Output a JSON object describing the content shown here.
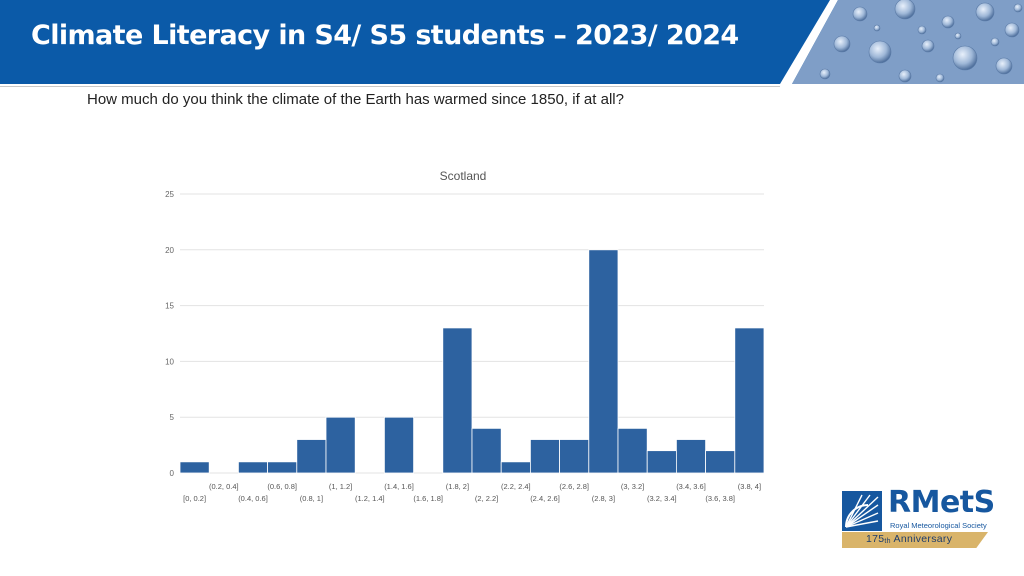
{
  "slide": {
    "title": "Climate Literacy in S4/ S5 students – 2023/ 2024",
    "question": "How much do you think the climate of the Earth has warmed since 1850, if at all?"
  },
  "logo": {
    "name": "RMetS",
    "society": "Royal Meteorological Society",
    "anniversary_number": "175",
    "anniversary_suffix": "th",
    "anniversary_word": "Anniversary",
    "colors": {
      "primary": "#16579f",
      "band": "#d9b46a"
    }
  },
  "colors": {
    "header": "#0b5aa8",
    "bar": "#2d62a0",
    "water_panel": "#7f9ec7"
  },
  "chart_data": {
    "type": "bar",
    "title": "Scotland",
    "xlabel": "",
    "ylabel": "",
    "categories": [
      "[0, 0.2]",
      "(0.2, 0.4]",
      "(0.4, 0.6]",
      "(0.6, 0.8]",
      "(0.8, 1]",
      "(1, 1.2]",
      "(1.2, 1.4]",
      "(1.4, 1.6]",
      "(1.6, 1.8]",
      "(1.8, 2]",
      "(2, 2.2]",
      "(2.2, 2.4]",
      "(2.4, 2.6]",
      "(2.6, 2.8]",
      "(2.8, 3]",
      "(3, 3.2]",
      "(3.2, 3.4]",
      "(3.4, 3.6]",
      "(3.6, 3.8]",
      "(3.8, 4]"
    ],
    "values": [
      1,
      0,
      1,
      1,
      3,
      5,
      0,
      5,
      0,
      13,
      4,
      1,
      3,
      3,
      20,
      4,
      2,
      3,
      2,
      13
    ],
    "ylim": [
      0,
      25
    ],
    "yticks": [
      0,
      5,
      10,
      15,
      20,
      25
    ],
    "grid": true,
    "legend": "none"
  }
}
